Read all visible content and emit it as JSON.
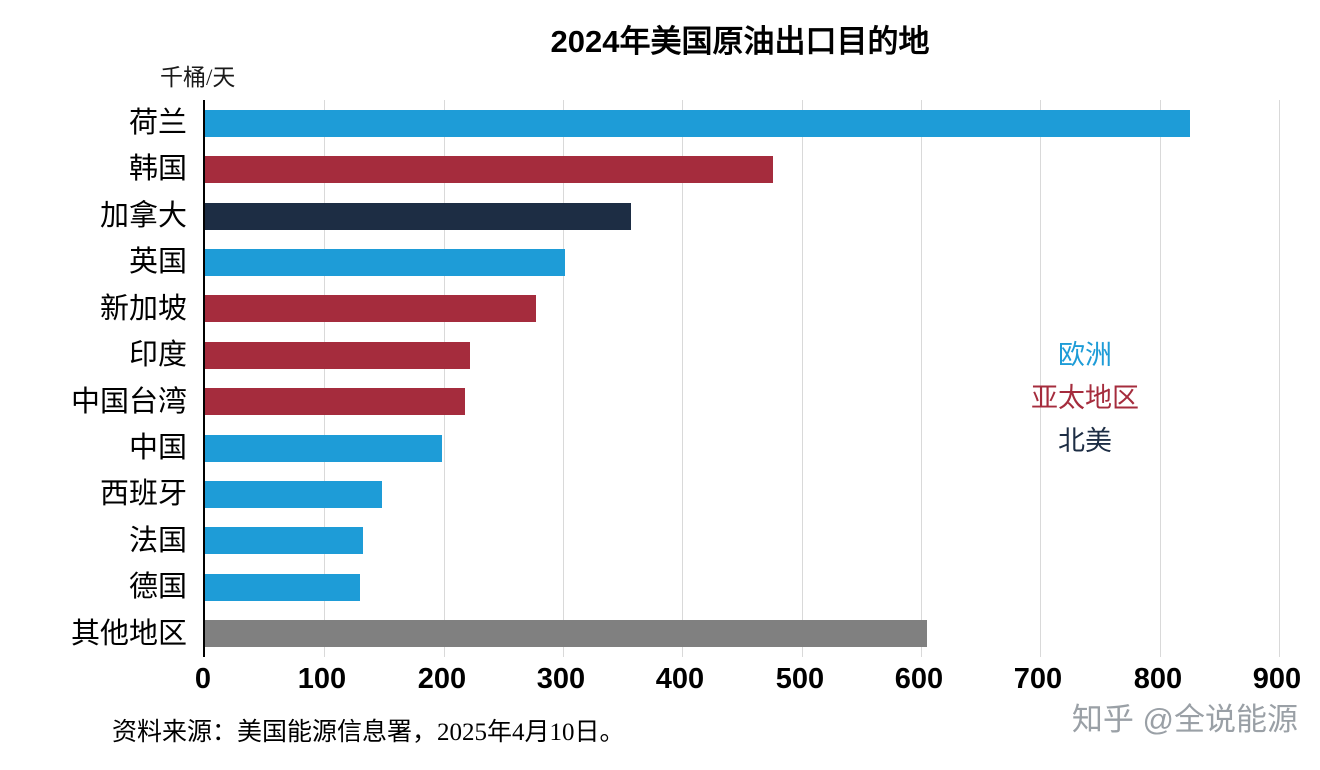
{
  "title": "2024年美国原油出口目的地",
  "unit_label": "千桶/天",
  "source_note": "资料来源：美国能源信息署，2025年4月10日。",
  "watermark": {
    "brand": "知乎",
    "handle": "@全说能源"
  },
  "colors": {
    "blue": "#1e9cd7",
    "red": "#a52c3d",
    "navy": "#1d2d44",
    "gray": "#808080",
    "grid": "#d9d9d9",
    "axis": "#000000",
    "watermark": "#9aa0a6"
  },
  "legend": [
    {
      "label": "欧洲",
      "color": "#1e9cd7"
    },
    {
      "label": "亚太地区",
      "color": "#a52c3d"
    },
    {
      "label": "北美",
      "color": "#1d2d44"
    }
  ],
  "chart_data": {
    "type": "bar",
    "orientation": "horizontal",
    "title": "2024年美国原油出口目的地",
    "xlabel": "千桶/天",
    "ylabel": "",
    "xlim": [
      0,
      900
    ],
    "x_ticks": [
      0,
      100,
      200,
      300,
      400,
      500,
      600,
      700,
      800,
      900
    ],
    "grid": true,
    "legend_position": "right-middle",
    "categories": [
      "荷兰",
      "韩国",
      "加拿大",
      "英国",
      "新加坡",
      "印度",
      "中国台湾",
      "中国",
      "西班牙",
      "法国",
      "德国",
      "其他地区"
    ],
    "values": [
      825,
      476,
      357,
      302,
      277,
      222,
      218,
      199,
      148,
      132,
      130,
      605
    ],
    "groups": [
      "blue",
      "red",
      "navy",
      "blue",
      "red",
      "red",
      "red",
      "blue",
      "blue",
      "blue",
      "blue",
      "gray"
    ],
    "group_names": {
      "blue": "欧洲",
      "red": "亚太地区",
      "navy": "北美",
      "gray": "其他地区"
    }
  }
}
